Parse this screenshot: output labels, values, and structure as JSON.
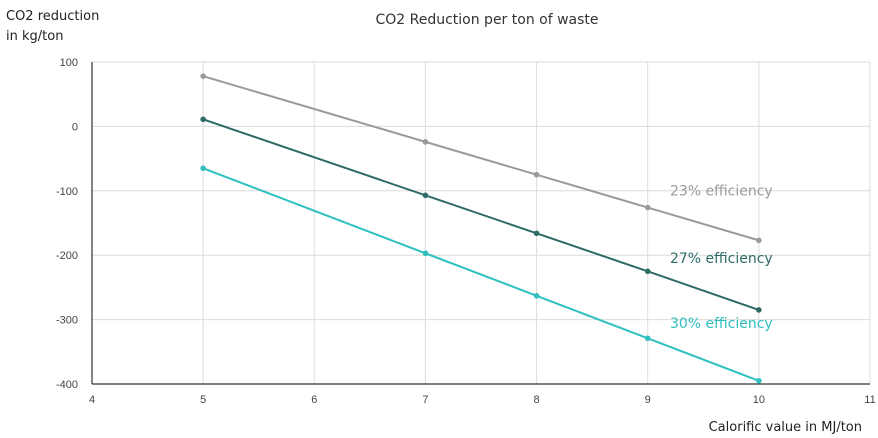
{
  "chart_data": {
    "type": "line",
    "title": "CO2 Reduction per ton of waste",
    "ylabel_line1": "CO2 reduction",
    "ylabel_line2": "in kg/ton",
    "xlabel": "Calorific value in MJ/ton",
    "xlim": [
      4,
      11
    ],
    "ylim": [
      -400,
      100
    ],
    "xticks": [
      4,
      5,
      6,
      7,
      8,
      9,
      10,
      11
    ],
    "yticks": [
      100,
      0,
      -100,
      -200,
      -300,
      -400
    ],
    "grid": true,
    "legend": "inline labels at right",
    "series": [
      {
        "name": "23% efficiency",
        "color": "#9a9a9a",
        "x": [
          5,
          7,
          8,
          9,
          10
        ],
        "y": [
          78,
          -24,
          -75,
          -126,
          -177
        ],
        "label_at": {
          "x": 9.2,
          "y": -107
        }
      },
      {
        "name": "27% efficiency",
        "color": "#2e6b66",
        "x": [
          5,
          7,
          8,
          9,
          10
        ],
        "y": [
          11,
          -107,
          -166,
          -225,
          -285
        ],
        "label_at": {
          "x": 9.2,
          "y": -212
        }
      },
      {
        "name": "30% efficiency",
        "color": "#2ebfbf",
        "x": [
          5,
          7,
          8,
          9,
          10
        ],
        "y": [
          -65,
          -197,
          -263,
          -329,
          -395
        ],
        "label_at": {
          "x": 9.2,
          "y": -313
        }
      }
    ]
  }
}
